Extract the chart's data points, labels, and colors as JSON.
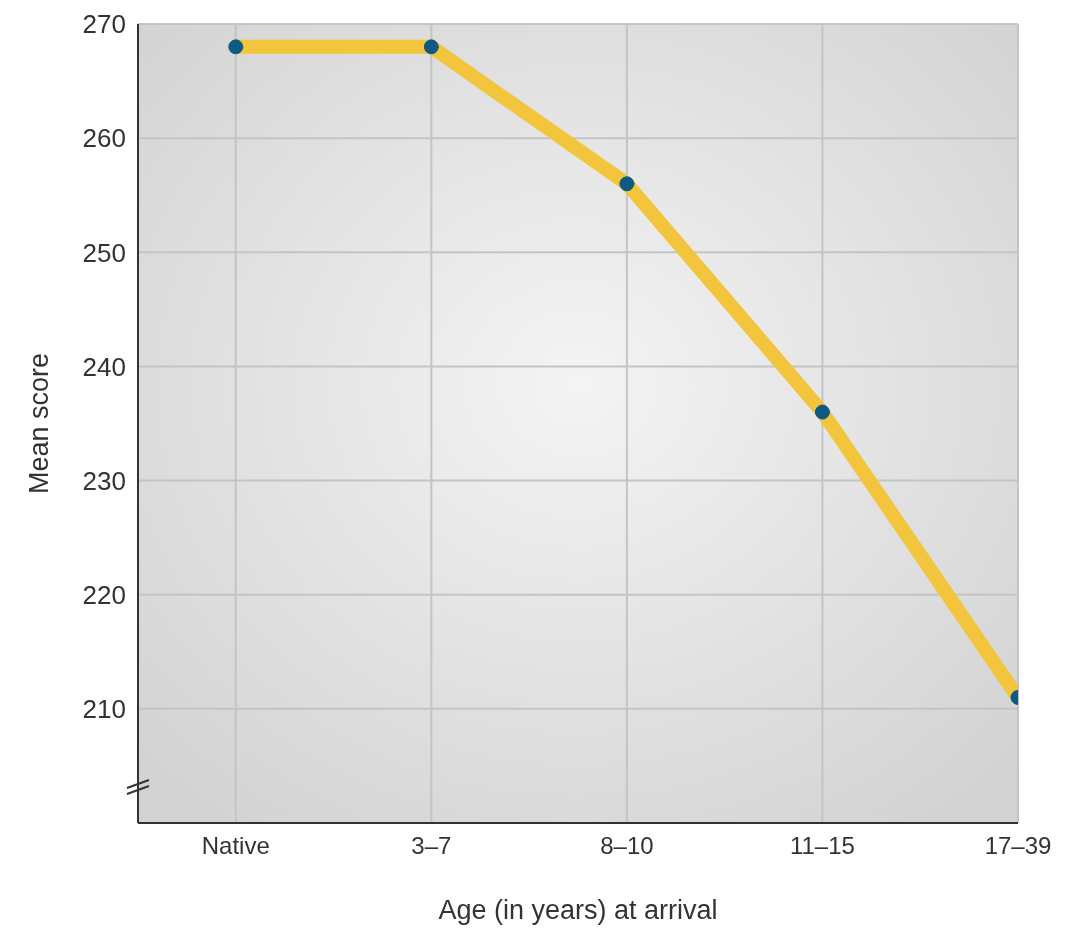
{
  "chart_data": {
    "type": "line",
    "xlabel": "Age (in years) at arrival",
    "ylabel": "Mean score",
    "categories": [
      "Native",
      "3–7",
      "8–10",
      "11–15",
      "17–39"
    ],
    "series": [
      {
        "color": "#f2c53d",
        "values": [
          268,
          268,
          256,
          236,
          211
        ]
      }
    ],
    "ylim": [
      200,
      270
    ],
    "yticks": [
      210,
      220,
      230,
      240,
      250,
      260,
      270
    ],
    "grid": true,
    "marker": "circle",
    "legend": false
  }
}
